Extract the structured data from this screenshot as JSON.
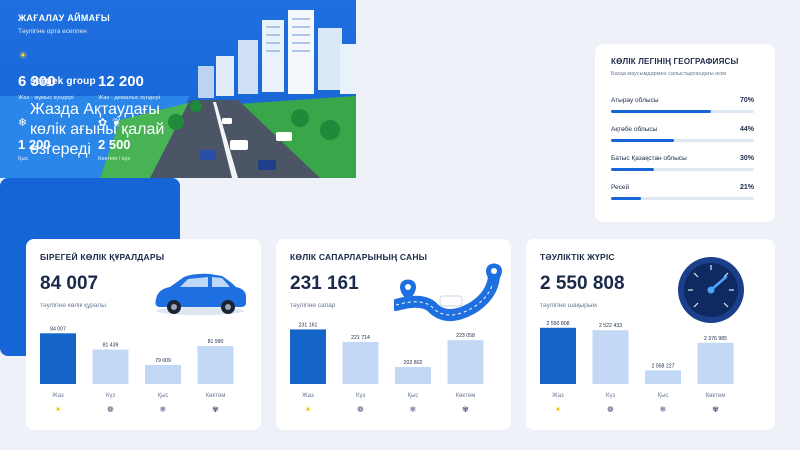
{
  "hero": {
    "brand": "sergek group",
    "title": "Жазда Ақтаудағы көлік ағыны қалай өзгереді"
  },
  "beach": {
    "title": "ЖАҒАЛАУ АЙМАҒЫ",
    "subtitle": "Тәулігіне орта есеппен",
    "summer_weekday": {
      "value": "6 300",
      "label": "Жаз - жұмыс күндері"
    },
    "summer_weekend": {
      "value": "12 200",
      "label": "Жаз - демалыс күндері"
    },
    "winter": {
      "value": "1 200",
      "label": "Қыс"
    },
    "spring_autumn": {
      "value": "2 500",
      "label": "Көктем / күз"
    },
    "icons": {
      "sun": "sun-icon",
      "snow": "snowflake-icon",
      "flower": "flower-icon",
      "leaf": "leaf-icon"
    }
  },
  "geo": {
    "title": "КӨЛІК ЛЕГІНІҢ ГЕОГРАФИЯСЫ",
    "subtitle": "Басқа маусымдармен салыстырғандағы өсім",
    "rows": [
      {
        "name": "Атырау облысы",
        "percent": "70%",
        "value": 70
      },
      {
        "name": "Ақтөбе облысы",
        "percent": "44%",
        "value": 44
      },
      {
        "name": "Батыс Қазақстан облысы",
        "percent": "30%",
        "value": 30
      },
      {
        "name": "Ресей",
        "percent": "21%",
        "value": 21
      }
    ]
  },
  "vehicles": {
    "title": "БІРЕГЕЙ КӨЛІК ҚҰРАЛДАРЫ",
    "big": "84 007",
    "sub": "тәулігіне көлік құралы"
  },
  "trips": {
    "title": "КӨЛІК САПАРЛАРЫНЫҢ САНЫ",
    "big": "231 161",
    "sub": "тәулігіне сапар"
  },
  "mileage": {
    "title": "ТӘУЛІКТІК ЖҮРІС",
    "big": "2 550 808",
    "sub": "тәулігіне шақырым"
  },
  "colors": {
    "accent": "#1665d6",
    "bar_highlight": "#1565c8",
    "bar_light": "#c2d8f5"
  },
  "chart_data": [
    {
      "type": "bar",
      "categories": [
        "Жаз",
        "Күз",
        "Қыс",
        "Көктем"
      ],
      "values": [
        84007,
        81439,
        79009,
        81990
      ],
      "labels": [
        "84 007",
        "81 439",
        "79 009",
        "81 990"
      ],
      "ylim": [
        76000,
        85000
      ]
    },
    {
      "type": "bar",
      "categories": [
        "Жаз",
        "Күз",
        "Қыс",
        "Көктем"
      ],
      "values": [
        231161,
        221714,
        202802,
        223058
      ],
      "labels": [
        "231 161",
        "221 714",
        "202 802",
        "223 058"
      ],
      "ylim": [
        190000,
        233000
      ]
    },
    {
      "type": "bar",
      "categories": [
        "Жаз",
        "Күз",
        "Қыс",
        "Көктем"
      ],
      "values": [
        2550808,
        2522433,
        2058227,
        2376985
      ],
      "labels": [
        "2 550 808",
        "2 522 433",
        "2 058 227",
        "2 376 985"
      ],
      "ylim": [
        1900000,
        2560000
      ]
    }
  ]
}
